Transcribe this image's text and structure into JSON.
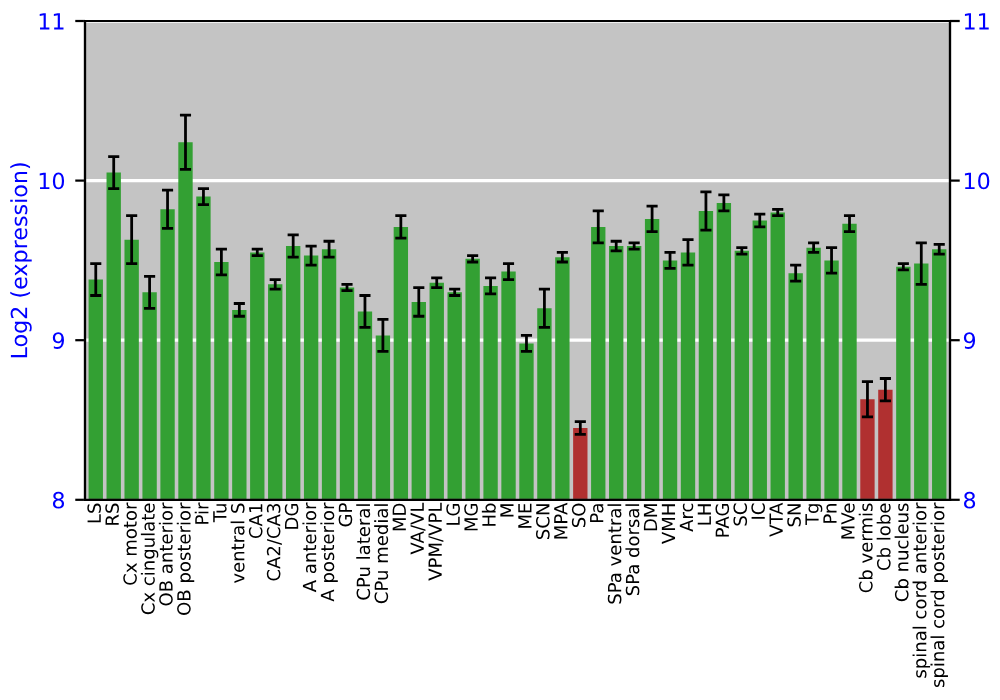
{
  "chart_data": {
    "type": "bar",
    "ylabel": "Log2 (expression)",
    "categories": [
      "LS",
      "RS",
      "Cx motor",
      "Cx cingulate",
      "OB anterior",
      "OB posterior",
      "Pir",
      "Tu",
      "ventral S",
      "CA1",
      "CA2/CA3",
      "DG",
      "A anterior",
      "A posterior",
      "GP",
      "CPu lateral",
      "CPu medial",
      "MD",
      "VA/VL",
      "VPM/VPL",
      "LG",
      "MG",
      "Hb",
      "M",
      "ME",
      "SCN",
      "MPA",
      "SO",
      "Pa",
      "SPa ventral",
      "SPa dorsal",
      "DM",
      "VMH",
      "Arc",
      "LH",
      "PAG",
      "SC",
      "IC",
      "VTA",
      "SN",
      "Tg",
      "Pn",
      "MVe",
      "Cb vermis",
      "Cb lobe",
      "Cb nucleus",
      "spinal cord anterior",
      "spinal cord posterior"
    ],
    "values": [
      9.38,
      10.05,
      9.63,
      9.3,
      9.82,
      10.24,
      9.9,
      9.49,
      9.19,
      9.55,
      9.35,
      9.59,
      9.53,
      9.57,
      9.33,
      9.18,
      9.03,
      9.71,
      9.24,
      9.36,
      9.3,
      9.51,
      9.34,
      9.43,
      8.98,
      9.2,
      9.52,
      8.45,
      9.71,
      9.59,
      9.59,
      9.76,
      9.5,
      9.55,
      9.81,
      9.86,
      9.56,
      9.75,
      9.8,
      9.42,
      9.58,
      9.5,
      9.73,
      8.63,
      8.69,
      9.46,
      9.48,
      9.57
    ],
    "errors": [
      0.1,
      0.1,
      0.15,
      0.1,
      0.12,
      0.17,
      0.05,
      0.08,
      0.04,
      0.02,
      0.03,
      0.07,
      0.06,
      0.05,
      0.02,
      0.1,
      0.1,
      0.07,
      0.09,
      0.03,
      0.02,
      0.02,
      0.05,
      0.05,
      0.05,
      0.12,
      0.03,
      0.04,
      0.1,
      0.03,
      0.02,
      0.08,
      0.05,
      0.08,
      0.12,
      0.05,
      0.02,
      0.04,
      0.02,
      0.05,
      0.03,
      0.08,
      0.05,
      0.11,
      0.07,
      0.02,
      0.13,
      0.03
    ],
    "colors": [
      "#33a033",
      "#33a033",
      "#33a033",
      "#33a033",
      "#33a033",
      "#33a033",
      "#33a033",
      "#33a033",
      "#33a033",
      "#33a033",
      "#33a033",
      "#33a033",
      "#33a033",
      "#33a033",
      "#33a033",
      "#33a033",
      "#33a033",
      "#33a033",
      "#33a033",
      "#33a033",
      "#33a033",
      "#33a033",
      "#33a033",
      "#33a033",
      "#33a033",
      "#33a033",
      "#33a033",
      "#b03030",
      "#33a033",
      "#33a033",
      "#33a033",
      "#33a033",
      "#33a033",
      "#33a033",
      "#33a033",
      "#33a033",
      "#33a033",
      "#33a033",
      "#33a033",
      "#33a033",
      "#33a033",
      "#33a033",
      "#33a033",
      "#b03030",
      "#b03030",
      "#33a033",
      "#33a033",
      "#33a033"
    ],
    "ylim": [
      8,
      11
    ],
    "yticks": [
      8,
      9,
      10,
      11
    ],
    "y2lim": [
      8,
      11
    ],
    "y2ticks": [
      8,
      9,
      10,
      11
    ],
    "grid": "y"
  }
}
